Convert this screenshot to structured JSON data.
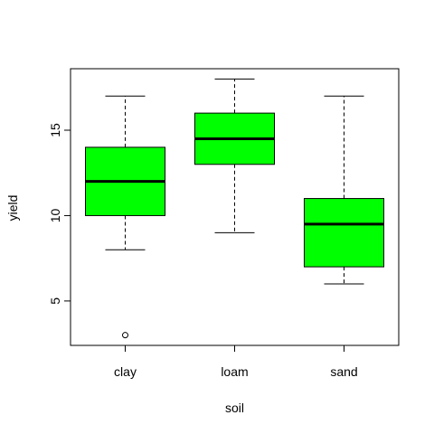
{
  "chart_data": {
    "type": "boxplot",
    "title": "",
    "xlabel": "soil",
    "ylabel": "yield",
    "categories": [
      "clay",
      "loam",
      "sand"
    ],
    "ylim": [
      2.4,
      18.6
    ],
    "yticks": [
      5,
      10,
      15
    ],
    "box_color": "#00ff00",
    "grid": false,
    "legend": "none",
    "boxes": [
      {
        "name": "clay",
        "whisker_low": 8,
        "q1": 10,
        "median": 12,
        "q3": 14,
        "whisker_high": 17,
        "outliers": [
          3
        ]
      },
      {
        "name": "loam",
        "whisker_low": 9,
        "q1": 13,
        "median": 14.5,
        "q3": 16,
        "whisker_high": 18,
        "outliers": []
      },
      {
        "name": "sand",
        "whisker_low": 6,
        "q1": 7,
        "median": 9.5,
        "q3": 11,
        "whisker_high": 17,
        "outliers": []
      }
    ]
  }
}
